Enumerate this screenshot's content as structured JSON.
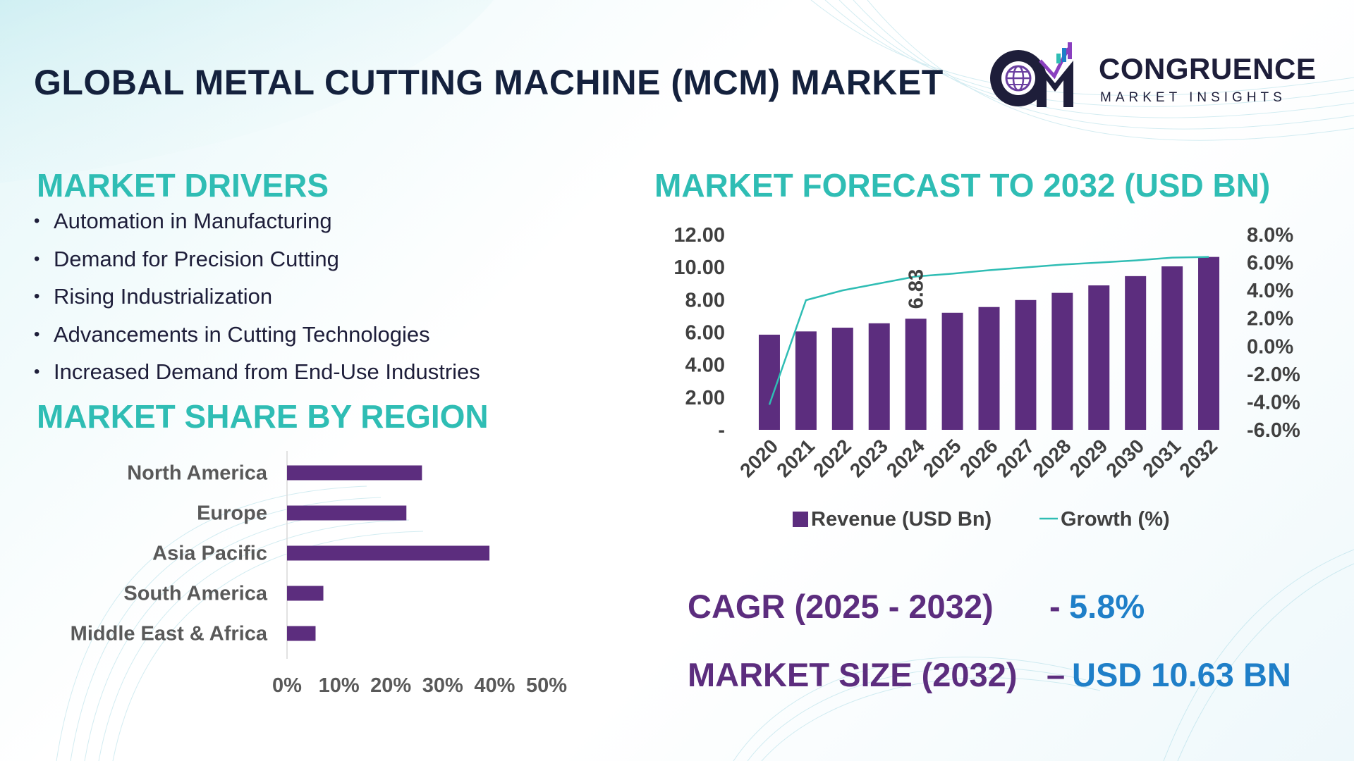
{
  "title": "GLOBAL METAL CUTTING MACHINE (MCM) MARKET",
  "logo": {
    "name": "CONGRUENCE",
    "tagline": "MARKET INSIGHTS",
    "icon": "globe-growth-logo-icon"
  },
  "colors": {
    "accent": "#2fbdb4",
    "bar": "#5c2d7e",
    "line": "#2fbdb4",
    "value_blue": "#1f7fc8",
    "title_dark": "#14213d"
  },
  "drivers": {
    "title": "MARKET DRIVERS",
    "items": [
      "Automation in Manufacturing",
      "Demand for Precision Cutting",
      "Rising Industrialization",
      "Advancements in Cutting Technologies",
      "Increased Demand from End-Use Industries"
    ]
  },
  "share": {
    "title": "MARKET SHARE BY REGION"
  },
  "forecast": {
    "title": "MARKET FORECAST TO 2032 (USD BN)"
  },
  "cagr": {
    "label": "CAGR (2025 - 2032)",
    "sep": "-",
    "value": "5.8%"
  },
  "market_size": {
    "label": "MARKET SIZE (2032)",
    "sep": "–",
    "value": "USD 10.63 BN"
  },
  "chart_data": [
    {
      "type": "bar",
      "orientation": "horizontal",
      "title": "MARKET SHARE BY REGION",
      "categories": [
        "North America",
        "Europe",
        "Asia Pacific",
        "South America",
        "Middle East & Africa"
      ],
      "values": [
        26,
        23,
        39,
        7,
        5.5
      ],
      "unit": "%",
      "xlim": [
        0,
        50
      ],
      "x_ticks": [
        0,
        10,
        20,
        30,
        40,
        50
      ],
      "x_tick_labels": [
        "0%",
        "10%",
        "20%",
        "30%",
        "40%",
        "50%"
      ],
      "grid": false,
      "legend": "none"
    },
    {
      "type": "bar+line",
      "title": "MARKET FORECAST TO 2032 (USD BN)",
      "categories": [
        "2020",
        "2021",
        "2022",
        "2023",
        "2024",
        "2025",
        "2026",
        "2027",
        "2028",
        "2029",
        "2030",
        "2031",
        "2032"
      ],
      "series": [
        {
          "name": "Revenue (USD Bn)",
          "type": "bar",
          "axis": "left",
          "values": [
            5.85,
            6.05,
            6.28,
            6.55,
            6.83,
            7.2,
            7.55,
            7.98,
            8.42,
            8.88,
            9.45,
            10.05,
            10.63
          ]
        },
        {
          "name": "Growth (%)",
          "type": "line",
          "axis": "right",
          "values": [
            -4.2,
            3.3,
            4.0,
            4.5,
            5.0,
            5.2,
            5.45,
            5.65,
            5.85,
            6.0,
            6.15,
            6.35,
            6.4
          ]
        }
      ],
      "y_left": {
        "range": [
          0,
          12
        ],
        "ticks": [
          0,
          2,
          4,
          6,
          8,
          10,
          12
        ],
        "tick_labels": [
          "-",
          "2.00",
          "4.00",
          "6.00",
          "8.00",
          "10.00",
          "12.00"
        ]
      },
      "y_right": {
        "range": [
          -6,
          8
        ],
        "ticks": [
          -6,
          -4,
          -2,
          0,
          2,
          4,
          6,
          8
        ],
        "tick_labels": [
          "-6.0%",
          "-4.0%",
          "-2.0%",
          "0.0%",
          "2.0%",
          "4.0%",
          "6.0%",
          "8.0%"
        ]
      },
      "data_labels": [
        {
          "category": "2024",
          "series": "Revenue (USD Bn)",
          "text": "6.83"
        }
      ],
      "legend": "bottom",
      "grid": false
    }
  ]
}
